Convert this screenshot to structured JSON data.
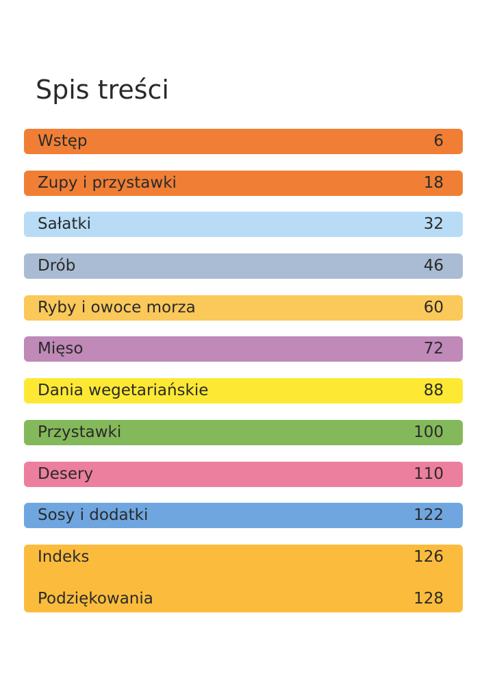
{
  "header": {
    "title": "Spis treści"
  },
  "toc": {
    "items": [
      {
        "label": "Wstęp",
        "page": "6",
        "color": "#f07f35"
      },
      {
        "label": "Zupy i przystawki",
        "page": "18",
        "color": "#f07f35"
      },
      {
        "label": "Sałatki",
        "page": "32",
        "color": "#b8dcf6"
      },
      {
        "label": "Drób",
        "page": "46",
        "color": "#a9bcd3"
      },
      {
        "label": "Ryby i owoce morza",
        "page": "60",
        "color": "#fbc85a"
      },
      {
        "label": "Mięso",
        "page": "72",
        "color": "#bf89b8"
      },
      {
        "label": "Dania wegetariańskie",
        "page": "88",
        "color": "#fde934"
      },
      {
        "label": "Przystawki",
        "page": "100",
        "color": "#84b95b"
      },
      {
        "label": "Desery",
        "page": "110",
        "color": "#ec7f9e"
      },
      {
        "label": "Sosy i dodatki",
        "page": "122",
        "color": "#6fa6e0"
      }
    ],
    "group": {
      "color": "#fbbc3d",
      "items": [
        {
          "label": "Indeks",
          "page": "126"
        },
        {
          "label": "Podziękowania",
          "page": "128"
        }
      ]
    }
  }
}
